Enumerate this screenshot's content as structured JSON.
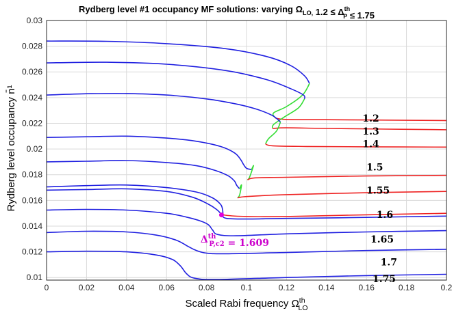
{
  "chart_data": {
    "type": "line",
    "title": "Rydberg level #1 occupancy MF solutions: varying Ω_LO, 1.2 ≤ Δ_P^th ≤ 1.75",
    "xlabel": "Scaled Rabi frequency Ω_LO^th",
    "ylabel": "Rydberg level occupancy n̄¹",
    "xlim": [
      0,
      0.2
    ],
    "ylim": [
      0.0098,
      0.03
    ],
    "x_ticks": [
      0,
      0.02,
      0.04,
      0.06,
      0.08,
      0.1,
      0.12,
      0.14,
      0.16,
      0.18,
      0.2
    ],
    "x_tick_labels": [
      "0",
      "0.02",
      "0.04",
      "0.06",
      "0.08",
      "0.1",
      "0.12",
      "0.14",
      "0.16",
      "0.18",
      "0.2"
    ],
    "y_ticks": [
      0.01,
      0.012,
      0.014,
      0.016,
      0.018,
      0.02,
      0.022,
      0.024,
      0.026,
      0.028,
      0.03
    ],
    "y_tick_labels": [
      "0.01",
      "0.012",
      "0.014",
      "0.016",
      "0.018",
      "0.02",
      "0.022",
      "0.024",
      "0.026",
      "0.028",
      "0.03"
    ],
    "grid": true,
    "colors": {
      "stable_upper": "#1f1fe0",
      "unstable": "#33dd33",
      "stable_lower": "#ee2222",
      "marker": "#dd00dd"
    },
    "series": [
      {
        "name": "1.2",
        "label_pos": [
          0.158,
          0.0224
        ],
        "blue": [
          [
            0,
            0.0284
          ],
          [
            0.03,
            0.02838
          ],
          [
            0.06,
            0.0282
          ],
          [
            0.09,
            0.0278
          ],
          [
            0.11,
            0.0272
          ],
          [
            0.122,
            0.0265
          ],
          [
            0.129,
            0.0257
          ],
          [
            0.1315,
            0.0251
          ]
        ],
        "green": [
          [
            0.1315,
            0.0251
          ],
          [
            0.128,
            0.0242
          ],
          [
            0.12,
            0.0233
          ],
          [
            0.1135,
            0.0228
          ],
          [
            0.1145,
            0.0224
          ]
        ],
        "red": [
          [
            0.1145,
            0.0224
          ],
          [
            0.12,
            0.0223
          ],
          [
            0.14,
            0.02228
          ],
          [
            0.17,
            0.02225
          ],
          [
            0.2,
            0.02222
          ]
        ]
      },
      {
        "name": "1.3",
        "label_pos": [
          0.158,
          0.0214
        ],
        "blue": [
          [
            0,
            0.0267
          ],
          [
            0.03,
            0.02675
          ],
          [
            0.06,
            0.0266
          ],
          [
            0.09,
            0.0261
          ],
          [
            0.11,
            0.0254
          ],
          [
            0.122,
            0.0247
          ],
          [
            0.1285,
            0.0242
          ],
          [
            0.129,
            0.0239
          ]
        ],
        "green": [
          [
            0.129,
            0.0239
          ],
          [
            0.126,
            0.0232
          ],
          [
            0.119,
            0.0225
          ],
          [
            0.1135,
            0.0219
          ],
          [
            0.113,
            0.0216
          ]
        ],
        "red": [
          [
            0.113,
            0.0216
          ],
          [
            0.12,
            0.02165
          ],
          [
            0.14,
            0.0216
          ],
          [
            0.17,
            0.02155
          ],
          [
            0.2,
            0.0215
          ]
        ]
      },
      {
        "name": "1.4",
        "label_pos": [
          0.158,
          0.0204
        ],
        "blue": [
          [
            0,
            0.0242
          ],
          [
            0.02,
            0.0243
          ],
          [
            0.04,
            0.02432
          ],
          [
            0.06,
            0.0242
          ],
          [
            0.08,
            0.0239
          ],
          [
            0.095,
            0.0235
          ],
          [
            0.105,
            0.0231
          ],
          [
            0.113,
            0.0226
          ],
          [
            0.117,
            0.0221
          ]
        ],
        "green": [
          [
            0.117,
            0.0221
          ],
          [
            0.115,
            0.0214
          ],
          [
            0.111,
            0.0208
          ],
          [
            0.1095,
            0.0204
          ]
        ],
        "red": [
          [
            0.1095,
            0.0204
          ],
          [
            0.113,
            0.02025
          ],
          [
            0.13,
            0.0202
          ],
          [
            0.16,
            0.02017
          ],
          [
            0.2,
            0.02015
          ]
        ]
      },
      {
        "name": "1.5",
        "label_pos": [
          0.16,
          0.0186
        ],
        "blue": [
          [
            0,
            0.0209
          ],
          [
            0.02,
            0.02095
          ],
          [
            0.04,
            0.021
          ],
          [
            0.06,
            0.02085
          ],
          [
            0.075,
            0.0206
          ],
          [
            0.087,
            0.0202
          ],
          [
            0.094,
            0.0197
          ],
          [
            0.097,
            0.0192
          ],
          [
            0.0985,
            0.0188
          ],
          [
            0.1,
            0.0185
          ],
          [
            0.1025,
            0.0184
          ]
        ],
        "green": [
          [
            0.1025,
            0.0184
          ],
          [
            0.1035,
            0.0187
          ],
          [
            0.1015,
            0.0178
          ],
          [
            0.1005,
            0.0176
          ]
        ],
        "red": [
          [
            0.1005,
            0.0176
          ],
          [
            0.104,
            0.01775
          ],
          [
            0.12,
            0.0178
          ],
          [
            0.16,
            0.0179
          ],
          [
            0.2,
            0.01795
          ]
        ]
      },
      {
        "name": "1.55",
        "label_pos": [
          0.16,
          0.0168
        ],
        "blue": [
          [
            0,
            0.019
          ],
          [
            0.02,
            0.01905
          ],
          [
            0.04,
            0.0191
          ],
          [
            0.06,
            0.01895
          ],
          [
            0.075,
            0.0187
          ],
          [
            0.085,
            0.0183
          ],
          [
            0.091,
            0.0179
          ],
          [
            0.094,
            0.0175
          ],
          [
            0.095,
            0.0172
          ],
          [
            0.0965,
            0.0169
          ]
        ],
        "green": [
          [
            0.0965,
            0.0169
          ],
          [
            0.0975,
            0.0172
          ],
          [
            0.0965,
            0.0164
          ],
          [
            0.0955,
            0.0162
          ]
        ],
        "red": [
          [
            0.0955,
            0.0162
          ],
          [
            0.1,
            0.0163
          ],
          [
            0.12,
            0.01645
          ],
          [
            0.16,
            0.0166
          ],
          [
            0.2,
            0.0167
          ]
        ]
      },
      {
        "name": "1.6",
        "label_pos": [
          0.165,
          0.0149
        ],
        "blue": [
          [
            0,
            0.01705
          ],
          [
            0.02,
            0.01715
          ],
          [
            0.04,
            0.0172
          ],
          [
            0.06,
            0.017
          ],
          [
            0.075,
            0.01665
          ],
          [
            0.083,
            0.0162
          ],
          [
            0.087,
            0.0157
          ],
          [
            0.088,
            0.0153
          ],
          [
            0.0882,
            0.015
          ]
        ],
        "green": [],
        "red": [
          [
            0.0882,
            0.015
          ],
          [
            0.0895,
            0.01485
          ],
          [
            0.1,
            0.01475
          ],
          [
            0.12,
            0.01475
          ],
          [
            0.16,
            0.01488
          ],
          [
            0.2,
            0.015
          ]
        ]
      },
      {
        "name": "1.609",
        "label_pos": null,
        "blue": [
          [
            0,
            0.0168
          ],
          [
            0.02,
            0.01685
          ],
          [
            0.04,
            0.0169
          ],
          [
            0.06,
            0.0167
          ],
          [
            0.073,
            0.01625
          ],
          [
            0.081,
            0.0157
          ],
          [
            0.085,
            0.0153
          ],
          [
            0.087,
            0.015
          ],
          [
            0.0875,
            0.01487
          ],
          [
            0.09,
            0.0146
          ],
          [
            0.1,
            0.01455
          ],
          [
            0.12,
            0.0146
          ],
          [
            0.16,
            0.01468
          ],
          [
            0.2,
            0.01478
          ]
        ],
        "green": [],
        "red": []
      },
      {
        "name": "1.65",
        "label_pos": [
          0.162,
          0.013
        ],
        "blue": [
          [
            0,
            0.01525
          ],
          [
            0.02,
            0.0153
          ],
          [
            0.04,
            0.01525
          ],
          [
            0.06,
            0.015
          ],
          [
            0.07,
            0.0147
          ],
          [
            0.077,
            0.0144
          ],
          [
            0.081,
            0.0141
          ],
          [
            0.083,
            0.0137
          ],
          [
            0.0855,
            0.01335
          ],
          [
            0.095,
            0.01325
          ],
          [
            0.12,
            0.0134
          ],
          [
            0.16,
            0.01355
          ],
          [
            0.2,
            0.01365
          ]
        ],
        "green": [],
        "red": []
      },
      {
        "name": "",
        "label_pos": null,
        "blue": [
          [
            0,
            0.0135
          ],
          [
            0.02,
            0.0136
          ],
          [
            0.04,
            0.01355
          ],
          [
            0.055,
            0.0133
          ],
          [
            0.065,
            0.0129
          ],
          [
            0.071,
            0.0124
          ],
          [
            0.075,
            0.0121
          ],
          [
            0.08,
            0.0119
          ],
          [
            0.09,
            0.01185
          ],
          [
            0.12,
            0.01195
          ],
          [
            0.16,
            0.0121
          ],
          [
            0.2,
            0.0122
          ]
        ],
        "green": [],
        "red": []
      },
      {
        "name": "1.7",
        "label_pos": [
          0.167,
          0.0112
        ],
        "blue": [
          [
            0,
            0.012
          ],
          [
            0.02,
            0.01205
          ],
          [
            0.04,
            0.012
          ],
          [
            0.055,
            0.01175
          ],
          [
            0.063,
            0.0114
          ],
          [
            0.067,
            0.0109
          ],
          [
            0.07,
            0.0103
          ],
          [
            0.074,
            0.00995
          ],
          [
            0.085,
            0.00985
          ],
          [
            0.12,
            0.01
          ],
          [
            0.16,
            0.01015
          ],
          [
            0.2,
            0.01025
          ]
        ],
        "green": [],
        "red": []
      },
      {
        "name": "1.75",
        "label_pos": [
          0.163,
          0.0099
        ],
        "blue": [],
        "green": [],
        "red": []
      }
    ],
    "annotations": [
      {
        "text": "Δ_P,c2^th = 1.609",
        "x": 0.0875,
        "y": 0.01487,
        "text_pos": [
          0.077,
          0.013
        ]
      }
    ]
  }
}
